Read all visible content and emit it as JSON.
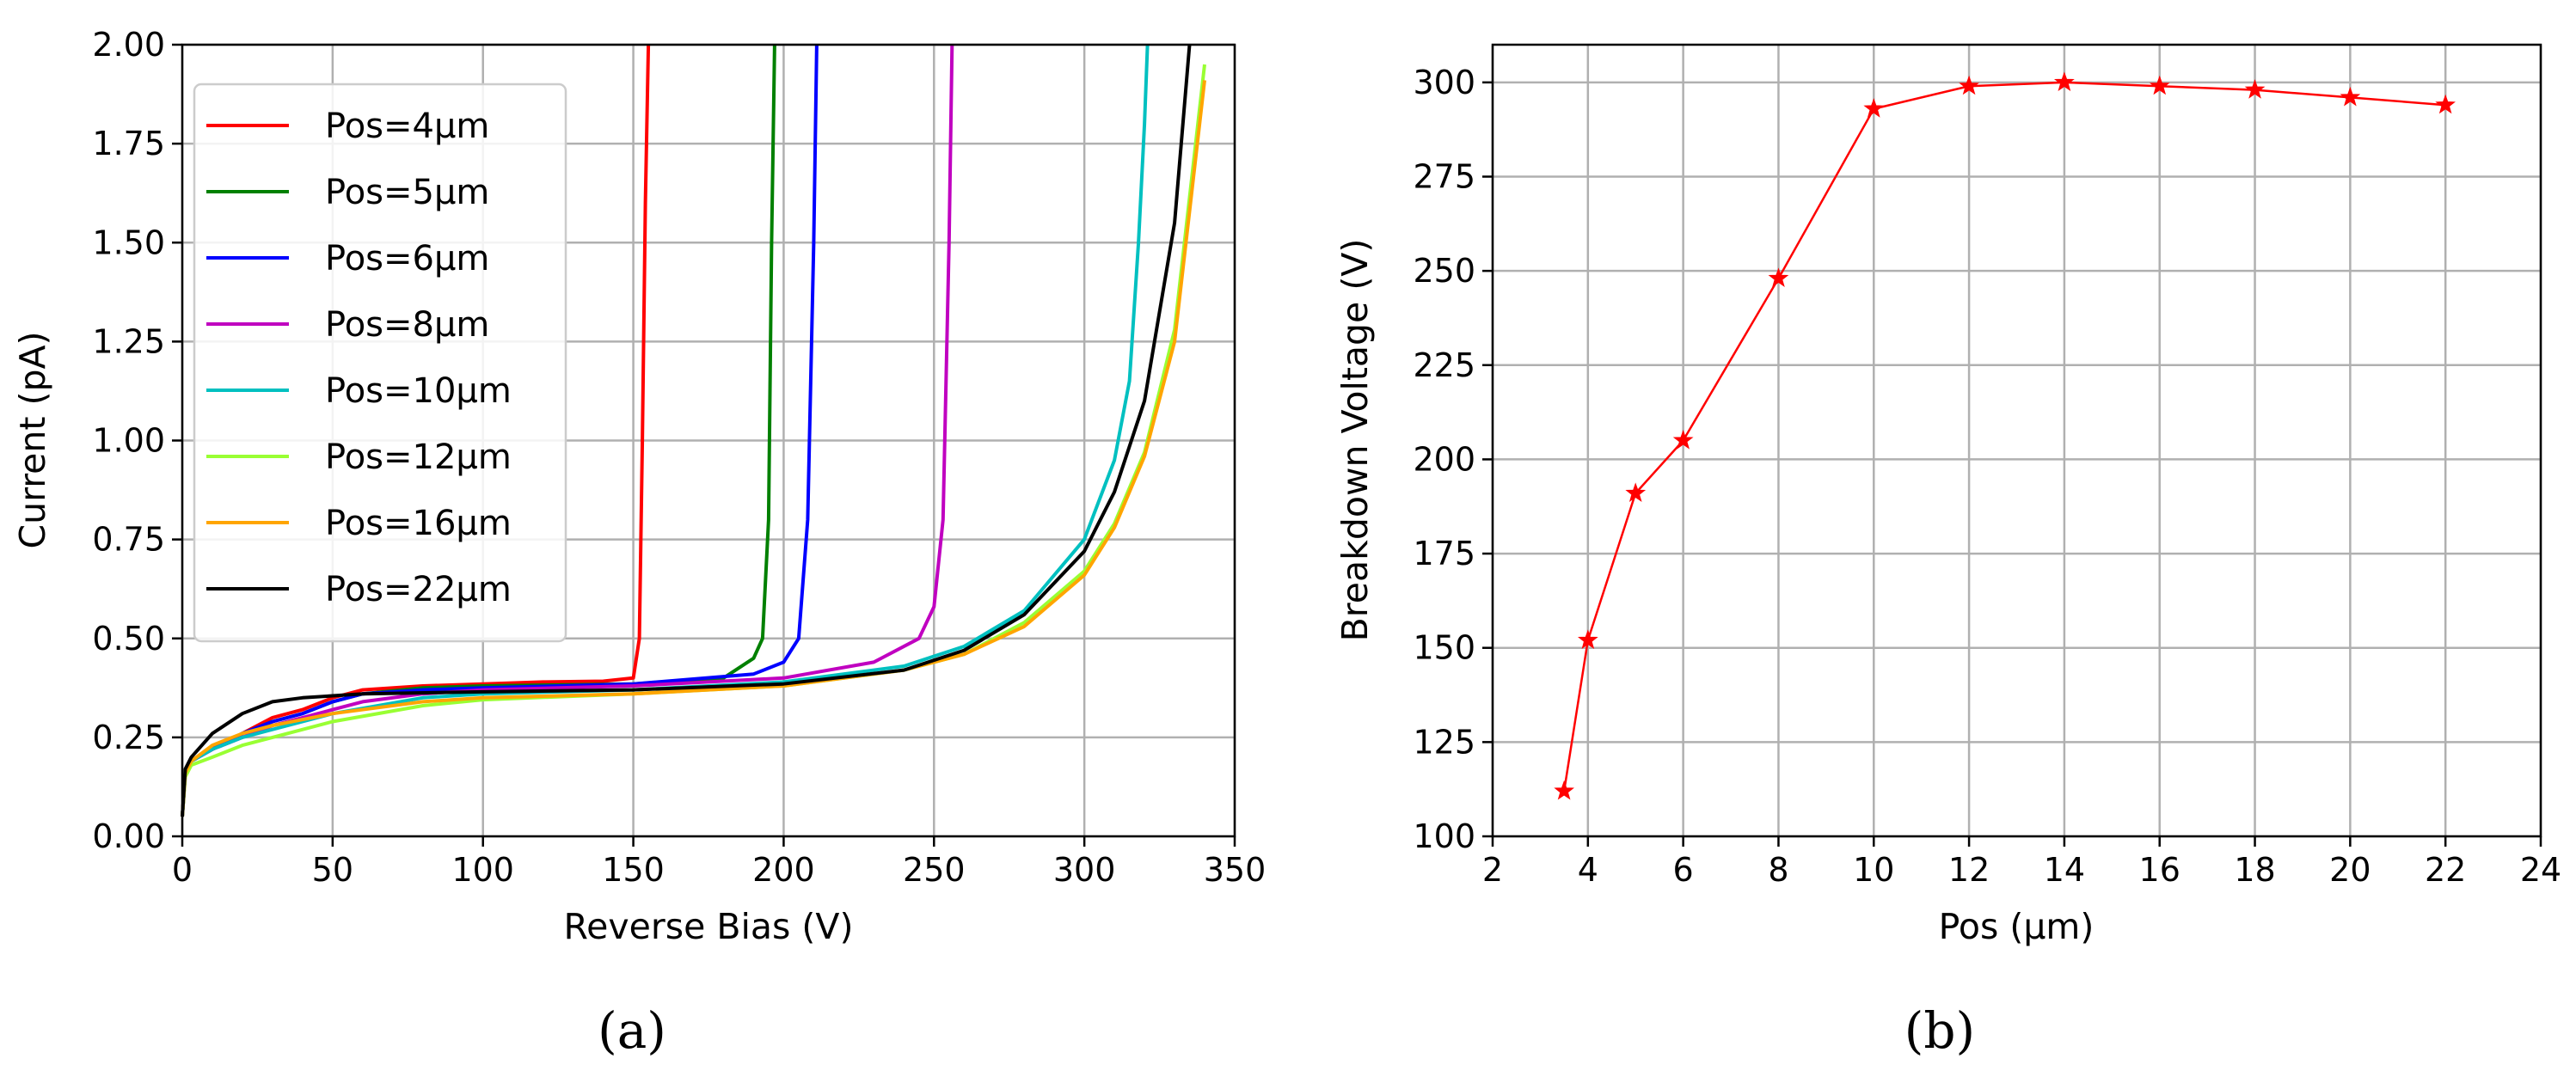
{
  "chart_data": [
    {
      "type": "line",
      "panel_label": "(a)",
      "xlabel": "Reverse Bias (V)",
      "ylabel": "Current (pA)",
      "xlim": [
        0,
        350
      ],
      "ylim": [
        0,
        2.0
      ],
      "xticks": [
        "0",
        "50",
        "100",
        "150",
        "200",
        "250",
        "300",
        "350"
      ],
      "yticks": [
        "0.00",
        "0.25",
        "0.50",
        "0.75",
        "1.00",
        "1.25",
        "1.50",
        "1.75",
        "2.00"
      ],
      "grid": true,
      "legend_position": "top-left",
      "series": [
        {
          "name": "Pos=4μm",
          "color": "#ff0000",
          "x": [
            0,
            1,
            3,
            10,
            20,
            30,
            40,
            50,
            60,
            80,
            100,
            120,
            140,
            150,
            152,
            153,
            154,
            155
          ],
          "y": [
            0.05,
            0.16,
            0.19,
            0.22,
            0.26,
            0.3,
            0.32,
            0.35,
            0.37,
            0.38,
            0.385,
            0.39,
            0.392,
            0.4,
            0.5,
            1.0,
            1.6,
            2.0
          ]
        },
        {
          "name": "Pos=5μm",
          "color": "#008000",
          "x": [
            0,
            1,
            3,
            10,
            20,
            30,
            40,
            50,
            60,
            80,
            100,
            150,
            180,
            190,
            193,
            195,
            196,
            197
          ],
          "y": [
            0.05,
            0.16,
            0.19,
            0.22,
            0.26,
            0.29,
            0.31,
            0.34,
            0.36,
            0.375,
            0.38,
            0.385,
            0.4,
            0.45,
            0.5,
            0.8,
            1.5,
            2.0
          ]
        },
        {
          "name": "Pos=6μm",
          "color": "#0000ff",
          "x": [
            0,
            1,
            3,
            10,
            20,
            30,
            40,
            50,
            60,
            80,
            100,
            150,
            190,
            200,
            205,
            208,
            210,
            211
          ],
          "y": [
            0.05,
            0.16,
            0.19,
            0.22,
            0.26,
            0.29,
            0.31,
            0.34,
            0.36,
            0.37,
            0.375,
            0.385,
            0.41,
            0.44,
            0.5,
            0.8,
            1.5,
            2.0
          ]
        },
        {
          "name": "Pos=8μm",
          "color": "#c000c0",
          "x": [
            0,
            1,
            3,
            10,
            20,
            30,
            40,
            50,
            60,
            80,
            100,
            150,
            200,
            230,
            245,
            250,
            253,
            255,
            256
          ],
          "y": [
            0.05,
            0.16,
            0.19,
            0.22,
            0.25,
            0.28,
            0.3,
            0.32,
            0.34,
            0.36,
            0.37,
            0.38,
            0.4,
            0.44,
            0.5,
            0.58,
            0.8,
            1.5,
            2.0
          ]
        },
        {
          "name": "Pos=10μm",
          "color": "#00c0c0",
          "x": [
            0,
            1,
            3,
            10,
            20,
            30,
            50,
            80,
            100,
            150,
            200,
            240,
            260,
            280,
            300,
            310,
            315,
            318,
            320,
            321
          ],
          "y": [
            0.05,
            0.16,
            0.19,
            0.22,
            0.25,
            0.27,
            0.31,
            0.35,
            0.36,
            0.37,
            0.39,
            0.43,
            0.48,
            0.57,
            0.75,
            0.95,
            1.15,
            1.5,
            1.8,
            2.0
          ]
        },
        {
          "name": "Pos=12μm",
          "color": "#99ff33",
          "x": [
            0,
            1,
            3,
            10,
            20,
            30,
            50,
            80,
            100,
            150,
            200,
            240,
            260,
            280,
            300,
            310,
            320,
            330,
            340
          ],
          "y": [
            0.05,
            0.15,
            0.18,
            0.2,
            0.23,
            0.25,
            0.29,
            0.33,
            0.345,
            0.36,
            0.38,
            0.42,
            0.46,
            0.54,
            0.67,
            0.79,
            0.97,
            1.28,
            1.95
          ]
        },
        {
          "name": "Pos=16μm",
          "color": "#ffa500",
          "x": [
            0,
            1,
            3,
            10,
            20,
            30,
            50,
            80,
            100,
            150,
            200,
            240,
            260,
            280,
            300,
            310,
            320,
            330,
            340
          ],
          "y": [
            0.05,
            0.16,
            0.19,
            0.23,
            0.26,
            0.28,
            0.31,
            0.34,
            0.35,
            0.36,
            0.38,
            0.42,
            0.46,
            0.53,
            0.66,
            0.78,
            0.96,
            1.25,
            1.91
          ]
        },
        {
          "name": "Pos=22μm",
          "color": "#000000",
          "x": [
            0,
            1,
            3,
            10,
            20,
            30,
            40,
            60,
            100,
            150,
            200,
            240,
            260,
            280,
            300,
            310,
            320,
            330,
            335
          ],
          "y": [
            0.05,
            0.17,
            0.2,
            0.26,
            0.31,
            0.34,
            0.35,
            0.36,
            0.365,
            0.37,
            0.385,
            0.42,
            0.47,
            0.56,
            0.72,
            0.87,
            1.1,
            1.55,
            2.0
          ]
        }
      ]
    },
    {
      "type": "line",
      "panel_label": "(b)",
      "xlabel": "Pos (μm)",
      "ylabel": "Breakdown Voltage (V)",
      "xlim": [
        2,
        24
      ],
      "ylim": [
        100,
        310
      ],
      "xticks": [
        "2",
        "4",
        "6",
        "8",
        "10",
        "12",
        "14",
        "16",
        "18",
        "20",
        "22",
        "24"
      ],
      "yticks": [
        "100",
        "125",
        "150",
        "175",
        "200",
        "225",
        "250",
        "275",
        "300"
      ],
      "grid": true,
      "marker": "star",
      "series": [
        {
          "color": "#ff0000",
          "x": [
            3.5,
            4,
            5,
            6,
            8,
            10,
            12,
            14,
            16,
            18,
            20,
            22
          ],
          "y": [
            112,
            152,
            191,
            205,
            248,
            293,
            299,
            300,
            299,
            298,
            296,
            294
          ]
        }
      ]
    }
  ]
}
